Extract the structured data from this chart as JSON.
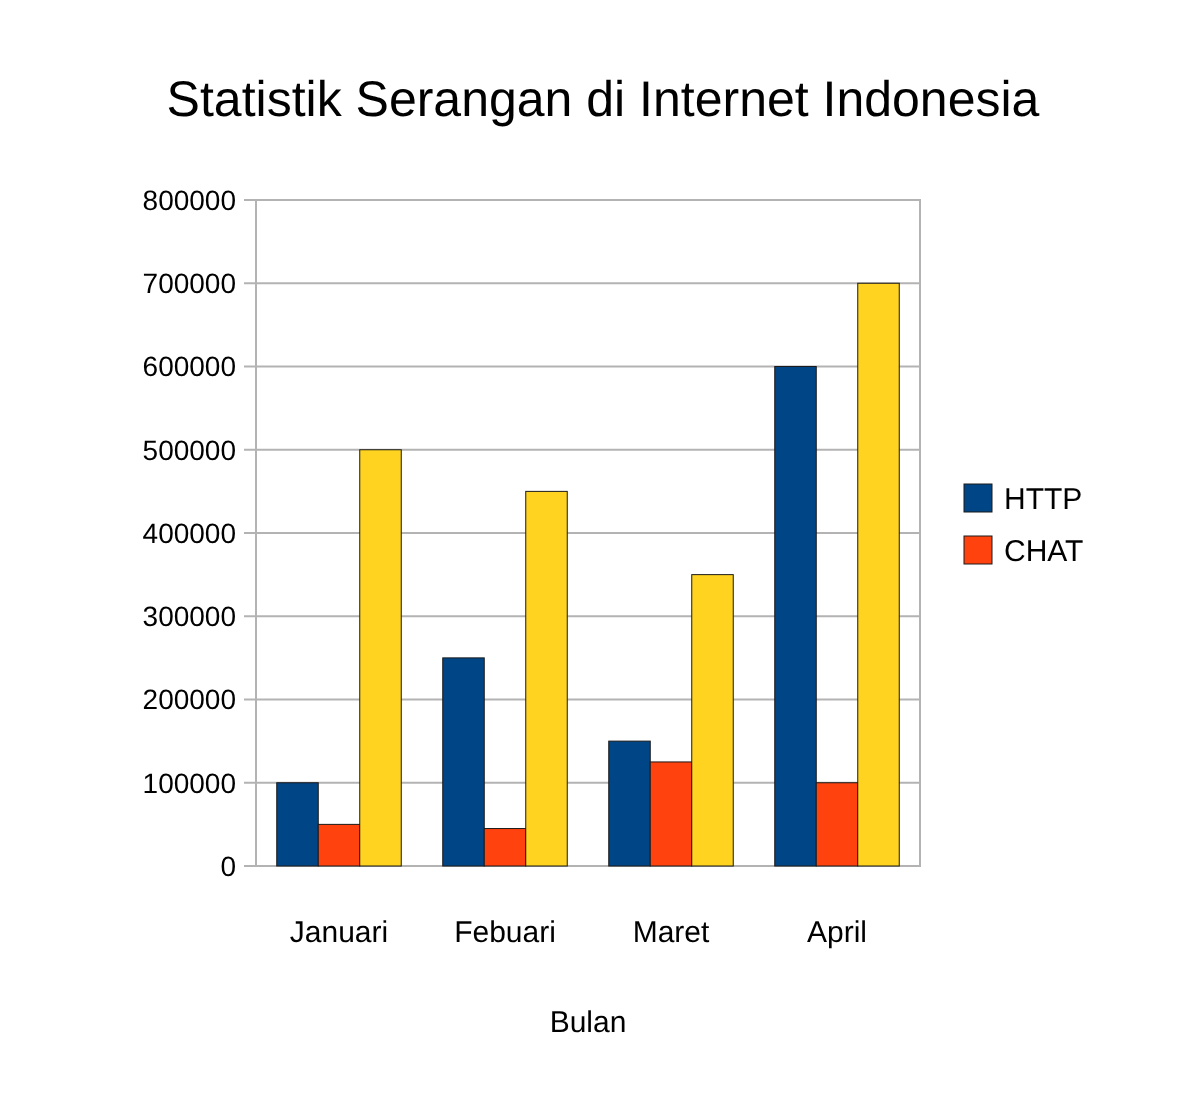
{
  "chart_data": {
    "type": "bar",
    "title": "Statistik Serangan di Internet Indonesia",
    "xlabel": "Bulan",
    "categories": [
      "Januari",
      "Febuari",
      "Maret",
      "April"
    ],
    "series": [
      {
        "name": "HTTP",
        "color": "#004586",
        "values": [
          100000,
          250000,
          150000,
          600000
        ]
      },
      {
        "name": "CHAT",
        "color": "#ff420e",
        "values": [
          50000,
          45000,
          125000,
          100000
        ]
      },
      {
        "color": "#ffd320",
        "values": [
          500000,
          450000,
          350000,
          700000
        ]
      }
    ],
    "ylim": [
      0,
      800000
    ],
    "yticks": [
      0,
      100000,
      200000,
      300000,
      400000,
      500000,
      600000,
      700000,
      800000
    ],
    "grid": "y",
    "legend": "right"
  }
}
